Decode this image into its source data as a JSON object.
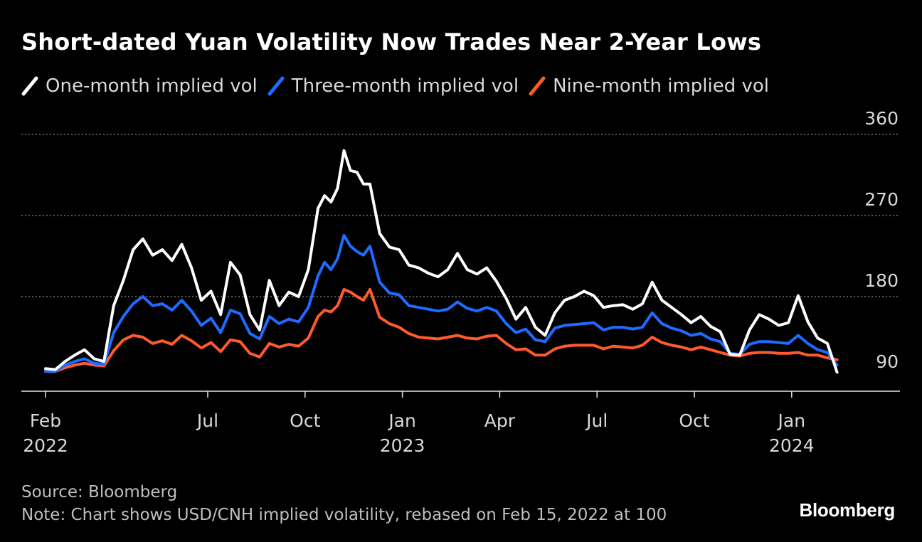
{
  "title": "Short-dated Yuan Volatility Now Trades Near 2-Year Lows",
  "source": "Source: Bloomberg",
  "note": "Note: Chart shows USD/CNH implied volatility, rebased on Feb 15, 2022 at 100",
  "brand": "Bloomberg",
  "colors": {
    "background": "#000000",
    "one_month": "#ffffff",
    "three_month": "#1f6bff",
    "nine_month": "#ff5a2b",
    "grid": "#8c8c8c"
  },
  "chart_data": {
    "type": "line",
    "title": "Short-dated Yuan Volatility Now Trades Near 2-Year Lows",
    "xlabel": "",
    "ylabel": "",
    "ylim": [
      75,
      360
    ],
    "y_ticks": [
      90,
      180,
      270,
      360
    ],
    "x_ticks": [
      {
        "t": 0.0,
        "label": "Feb",
        "sub": "2022"
      },
      {
        "t": 5.0,
        "label": "Jul",
        "sub": ""
      },
      {
        "t": 8.0,
        "label": "Oct",
        "sub": ""
      },
      {
        "t": 11.0,
        "label": "Jan",
        "sub": "2023"
      },
      {
        "t": 14.0,
        "label": "Apr",
        "sub": ""
      },
      {
        "t": 17.0,
        "label": "Jul",
        "sub": ""
      },
      {
        "t": 20.0,
        "label": "Oct",
        "sub": ""
      },
      {
        "t": 23.0,
        "label": "Jan",
        "sub": "2024"
      }
    ],
    "x_unit": "months since Feb 1, 2022",
    "x_range": [
      -0.4,
      26.7
    ],
    "series": [
      {
        "name": "One-month implied vol",
        "color": "#ffffff",
        "x": [
          0.0,
          0.3,
          0.6,
          0.9,
          1.2,
          1.5,
          1.8,
          2.1,
          2.4,
          2.7,
          3.0,
          3.3,
          3.6,
          3.9,
          4.2,
          4.5,
          4.8,
          5.1,
          5.4,
          5.7,
          6.0,
          6.3,
          6.6,
          6.9,
          7.2,
          7.5,
          7.8,
          8.1,
          8.4,
          8.6,
          8.8,
          9.0,
          9.2,
          9.4,
          9.6,
          9.8,
          10.0,
          10.3,
          10.6,
          10.9,
          11.2,
          11.5,
          11.8,
          12.1,
          12.4,
          12.7,
          13.0,
          13.3,
          13.6,
          13.9,
          14.2,
          14.5,
          14.8,
          15.1,
          15.4,
          15.7,
          16.0,
          16.3,
          16.6,
          16.9,
          17.2,
          17.5,
          17.8,
          18.1,
          18.4,
          18.7,
          19.0,
          19.3,
          19.6,
          19.9,
          20.2,
          20.5,
          20.8,
          21.1,
          21.4,
          21.7,
          22.0,
          22.3,
          22.6,
          22.9,
          23.2,
          23.5,
          23.8,
          24.1,
          24.4
        ],
        "values": [
          100,
          99,
          108,
          115,
          121,
          111,
          108,
          170,
          198,
          232,
          244,
          226,
          232,
          220,
          238,
          212,
          176,
          186,
          160,
          218,
          204,
          160,
          143,
          198,
          170,
          185,
          180,
          210,
          278,
          292,
          285,
          300,
          342,
          320,
          318,
          305,
          305,
          250,
          235,
          232,
          215,
          212,
          206,
          202,
          210,
          228,
          210,
          205,
          212,
          197,
          178,
          155,
          168,
          146,
          137,
          162,
          176,
          180,
          186,
          181,
          168,
          170,
          171,
          166,
          172,
          196,
          176,
          168,
          160,
          151,
          158,
          147,
          141,
          116,
          115,
          143,
          160,
          155,
          148,
          151,
          181,
          152,
          134,
          128,
          96
        ]
      },
      {
        "name": "Three-month implied vol",
        "color": "#1f6bff",
        "x": [
          0.0,
          0.3,
          0.6,
          0.9,
          1.2,
          1.5,
          1.8,
          2.1,
          2.4,
          2.7,
          3.0,
          3.3,
          3.6,
          3.9,
          4.2,
          4.5,
          4.8,
          5.1,
          5.4,
          5.7,
          6.0,
          6.3,
          6.6,
          6.9,
          7.2,
          7.5,
          7.8,
          8.1,
          8.4,
          8.6,
          8.8,
          9.0,
          9.2,
          9.4,
          9.6,
          9.8,
          10.0,
          10.3,
          10.6,
          10.9,
          11.2,
          11.5,
          11.8,
          12.1,
          12.4,
          12.7,
          13.0,
          13.3,
          13.6,
          13.9,
          14.2,
          14.5,
          14.8,
          15.1,
          15.4,
          15.7,
          16.0,
          16.3,
          16.6,
          16.9,
          17.2,
          17.5,
          17.8,
          18.1,
          18.4,
          18.7,
          19.0,
          19.3,
          19.6,
          19.9,
          20.2,
          20.5,
          20.8,
          21.1,
          21.4,
          21.7,
          22.0,
          22.3,
          22.6,
          22.9,
          23.2,
          23.5,
          23.8,
          24.1,
          24.4
        ],
        "values": [
          97,
          97,
          104,
          108,
          111,
          106,
          105,
          140,
          158,
          172,
          180,
          170,
          172,
          165,
          176,
          164,
          148,
          156,
          140,
          165,
          161,
          139,
          133,
          158,
          150,
          155,
          152,
          168,
          203,
          218,
          210,
          222,
          248,
          236,
          230,
          226,
          236,
          196,
          184,
          182,
          170,
          168,
          166,
          164,
          166,
          174,
          167,
          164,
          168,
          164,
          150,
          140,
          144,
          132,
          130,
          145,
          148,
          149,
          150,
          151,
          143,
          146,
          146,
          144,
          146,
          162,
          150,
          145,
          142,
          137,
          139,
          133,
          130,
          117,
          116,
          127,
          130,
          130,
          129,
          128,
          137,
          128,
          121,
          118,
          104
        ]
      },
      {
        "name": "Nine-month implied vol",
        "color": "#ff5a2b",
        "x": [
          0.0,
          0.3,
          0.6,
          0.9,
          1.2,
          1.5,
          1.8,
          2.1,
          2.4,
          2.7,
          3.0,
          3.3,
          3.6,
          3.9,
          4.2,
          4.5,
          4.8,
          5.1,
          5.4,
          5.7,
          6.0,
          6.3,
          6.6,
          6.9,
          7.2,
          7.5,
          7.8,
          8.1,
          8.4,
          8.6,
          8.8,
          9.0,
          9.2,
          9.4,
          9.6,
          9.8,
          10.0,
          10.3,
          10.6,
          10.9,
          11.2,
          11.5,
          11.8,
          12.1,
          12.4,
          12.7,
          13.0,
          13.3,
          13.6,
          13.9,
          14.2,
          14.5,
          14.8,
          15.1,
          15.4,
          15.7,
          16.0,
          16.3,
          16.6,
          16.9,
          17.2,
          17.5,
          17.8,
          18.1,
          18.4,
          18.7,
          19.0,
          19.3,
          19.6,
          19.9,
          20.2,
          20.5,
          20.8,
          21.1,
          21.4,
          21.7,
          22.0,
          22.3,
          22.6,
          22.9,
          23.2,
          23.5,
          23.8,
          24.1,
          24.4
        ],
        "values": [
          97,
          97,
          101,
          104,
          106,
          104,
          103,
          120,
          132,
          137,
          135,
          128,
          131,
          127,
          137,
          131,
          123,
          129,
          119,
          132,
          130,
          117,
          113,
          128,
          124,
          127,
          125,
          134,
          158,
          165,
          163,
          170,
          188,
          185,
          180,
          176,
          188,
          157,
          150,
          146,
          139,
          135,
          134,
          133,
          135,
          137,
          134,
          133,
          136,
          137,
          128,
          121,
          122,
          115,
          115,
          122,
          125,
          126,
          126,
          126,
          122,
          125,
          124,
          123,
          126,
          135,
          129,
          126,
          124,
          121,
          124,
          121,
          118,
          115,
          114,
          117,
          118,
          118,
          117,
          117,
          118,
          115,
          115,
          112,
          110
        ]
      }
    ]
  }
}
